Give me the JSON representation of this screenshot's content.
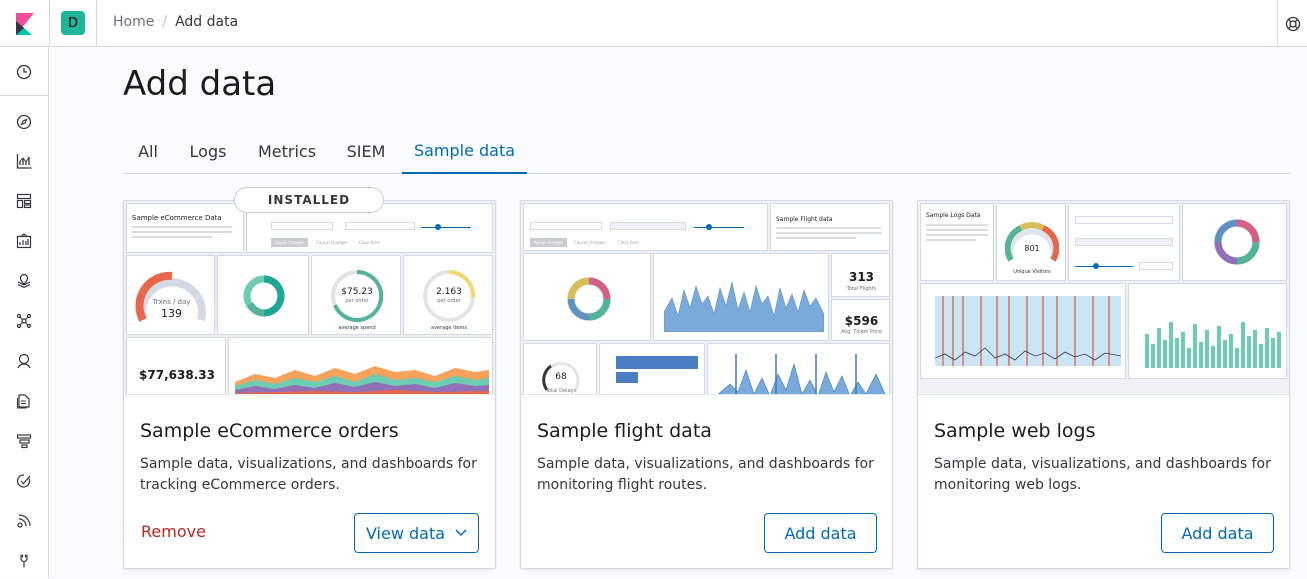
{
  "header": {
    "space_initial": "D",
    "breadcrumbs": [
      "Home",
      "Add data"
    ]
  },
  "page": {
    "title": "Add data",
    "tabs": [
      {
        "label": "All",
        "active": false
      },
      {
        "label": "Logs",
        "active": false
      },
      {
        "label": "Metrics",
        "active": false
      },
      {
        "label": "SIEM",
        "active": false
      },
      {
        "label": "Sample data",
        "active": true
      }
    ]
  },
  "sidebar": {
    "items": [
      "clock-icon",
      "compass-icon",
      "visualize-icon",
      "dashboard-icon",
      "canvas-icon",
      "maps-icon",
      "ml-icon",
      "infrastructure-icon",
      "logs-icon",
      "apm-icon",
      "uptime-icon",
      "siem-icon",
      "dev-tools-icon"
    ]
  },
  "cards": [
    {
      "title": "Sample eCommerce orders",
      "description": "Sample data, visualizations, and dashboards for tracking eCommerce orders.",
      "badge": "INSTALLED",
      "secondary_action": "Remove",
      "primary_action": "View data",
      "thumb": {
        "panel_title": "Sample eCommerce Data",
        "gauge_value": "139",
        "gauge_label": "Trxns / day",
        "avg_price": "$75.23",
        "avg_price_unit": "per order",
        "avg_price_label": "average spend",
        "avg_qty": "2.163",
        "avg_qty_unit": "per order",
        "avg_qty_label": "average items",
        "revenue": "$77,638.33",
        "buttons": [
          "Apply changes",
          "Cancel changes",
          "Clear form"
        ]
      }
    },
    {
      "title": "Sample flight data",
      "description": "Sample data, visualizations, and dashboards for monitoring flight routes.",
      "primary_action": "Add data",
      "thumb": {
        "panel_title": "Sample Flight data",
        "total_flights": "313",
        "total_flights_label": "Total Flights",
        "avg_price": "$596",
        "avg_price_label": "Avg. Ticket Price",
        "delays": "68",
        "delays_label": "Total Delays",
        "buttons": [
          "Apply changes",
          "Cancel changes",
          "Clear form"
        ]
      }
    },
    {
      "title": "Sample web logs",
      "description": "Sample data, visualizations, and dashboards for monitoring web logs.",
      "primary_action": "Add data",
      "thumb": {
        "panel_title": "Sample Logs Data",
        "visitors": "801",
        "visitors_label": "Unique Visitors"
      }
    }
  ],
  "colors": {
    "accent": "#006bb4",
    "danger": "#bd271e",
    "space_badge": "#20b69b"
  }
}
